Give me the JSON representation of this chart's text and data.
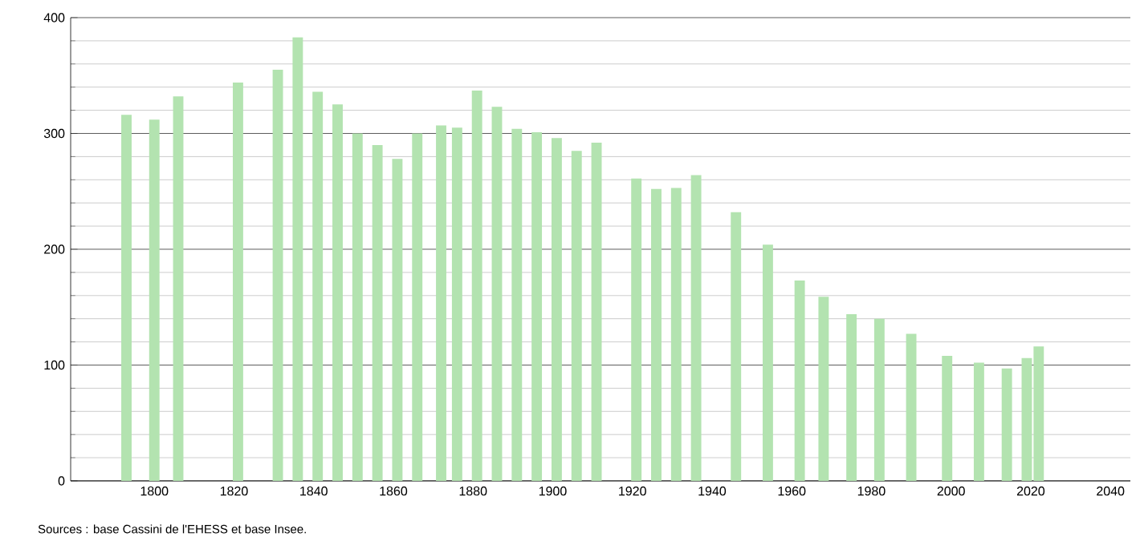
{
  "chart_data": {
    "type": "bar",
    "x": [
      1793,
      1800,
      1806,
      1821,
      1831,
      1836,
      1841,
      1846,
      1851,
      1856,
      1861,
      1866,
      1872,
      1876,
      1881,
      1886,
      1891,
      1896,
      1901,
      1906,
      1911,
      1921,
      1926,
      1931,
      1936,
      1946,
      1954,
      1962,
      1968,
      1975,
      1982,
      1990,
      1999,
      2007,
      2014,
      2019,
      2022
    ],
    "values": [
      316,
      312,
      332,
      344,
      355,
      383,
      336,
      325,
      300,
      290,
      278,
      300,
      307,
      305,
      337,
      323,
      304,
      301,
      296,
      285,
      292,
      261,
      252,
      253,
      264,
      232,
      204,
      173,
      159,
      144,
      140,
      127,
      108,
      102,
      97,
      106,
      116
    ],
    "color": "#b3e3b0",
    "xlim": [
      1779,
      2045
    ],
    "ylim": [
      0,
      400
    ],
    "xticks": [
      1800,
      1820,
      1840,
      1860,
      1880,
      1900,
      1920,
      1940,
      1960,
      1980,
      2000,
      2020,
      2040
    ],
    "yticks": [
      0,
      {
        "value": 20,
        "label": null
      },
      {
        "value": 40,
        "label": null
      },
      {
        "value": 60,
        "label": null
      },
      {
        "value": 80,
        "label": null
      },
      100,
      {
        "value": 120,
        "label": null
      },
      {
        "value": 140,
        "label": null
      },
      {
        "value": 160,
        "label": null
      },
      {
        "value": 180,
        "label": null
      },
      200,
      {
        "value": 220,
        "label": null
      },
      {
        "value": 240,
        "label": null
      },
      {
        "value": 260,
        "label": null
      },
      {
        "value": 280,
        "label": null
      },
      300,
      {
        "value": 320,
        "label": null
      },
      {
        "value": 340,
        "label": null
      },
      {
        "value": 360,
        "label": null
      },
      {
        "value": 380,
        "label": null
      },
      400
    ],
    "grid": "y",
    "annotations": [
      "Sources : base Cassini de l'EHESS et base Insee."
    ]
  }
}
